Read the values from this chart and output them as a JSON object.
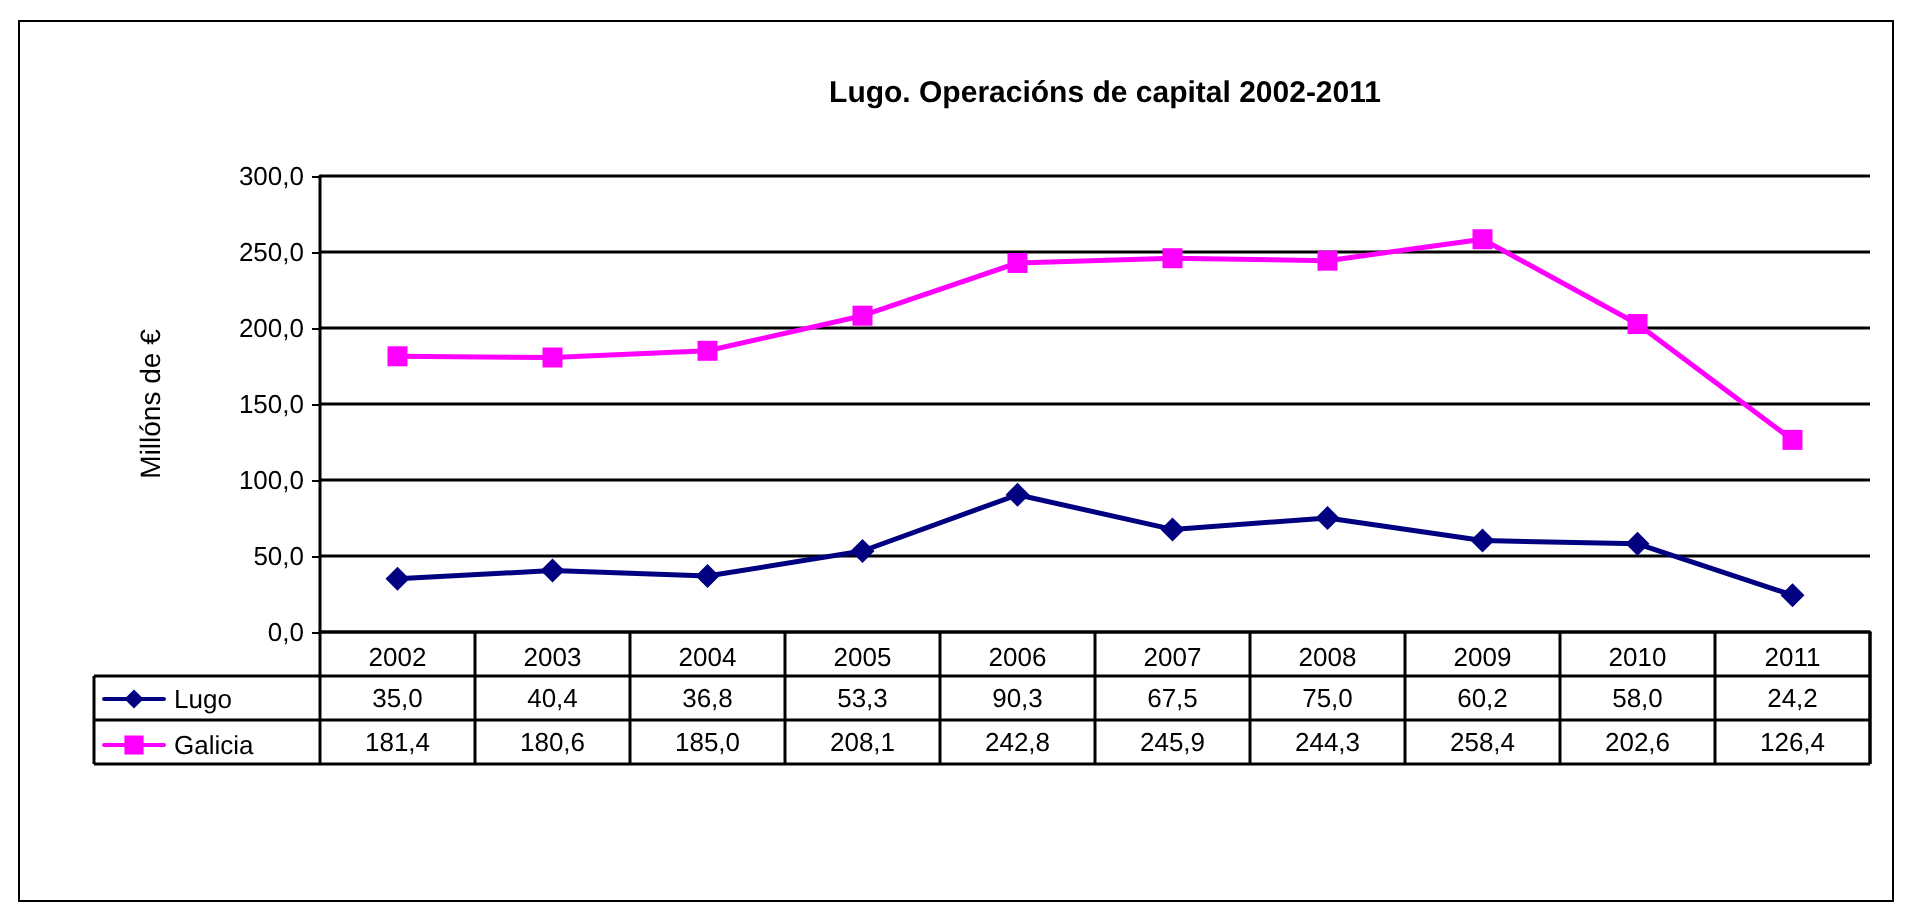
{
  "chart_data": {
    "type": "line",
    "title": "Lugo. Operacións de capital 2002-2011",
    "ylabel": "Millóns de €",
    "categories": [
      "2002",
      "2003",
      "2004",
      "2005",
      "2006",
      "2007",
      "2008",
      "2009",
      "2010",
      "2011"
    ],
    "series": [
      {
        "name": "Lugo",
        "color": "#000080",
        "marker": "diamond",
        "values": [
          35.0,
          40.4,
          36.8,
          53.3,
          90.3,
          67.5,
          75.0,
          60.2,
          58.0,
          24.2
        ],
        "value_labels": [
          "35,0",
          "40,4",
          "36,8",
          "53,3",
          "90,3",
          "67,5",
          "75,0",
          "60,2",
          "58,0",
          "24,2"
        ]
      },
      {
        "name": "Galicia",
        "color": "#ff00ff",
        "marker": "square",
        "values": [
          181.4,
          180.6,
          185.0,
          208.1,
          242.8,
          245.9,
          244.3,
          258.4,
          202.6,
          126.4
        ],
        "value_labels": [
          "181,4",
          "180,6",
          "185,0",
          "208,1",
          "242,8",
          "245,9",
          "244,3",
          "258,4",
          "202,6",
          "126,4"
        ]
      }
    ],
    "ylim": [
      0,
      300
    ],
    "yticks": [
      {
        "value": 0,
        "label": "0,0"
      },
      {
        "value": 50,
        "label": "50,0"
      },
      {
        "value": 100,
        "label": "100,0"
      },
      {
        "value": 150,
        "label": "150,0"
      },
      {
        "value": 200,
        "label": "200,0"
      },
      {
        "value": 250,
        "label": "250,0"
      },
      {
        "value": 300,
        "label": "300,0"
      }
    ],
    "grid": "y",
    "legend": "bottom left",
    "line_style": "solid"
  }
}
